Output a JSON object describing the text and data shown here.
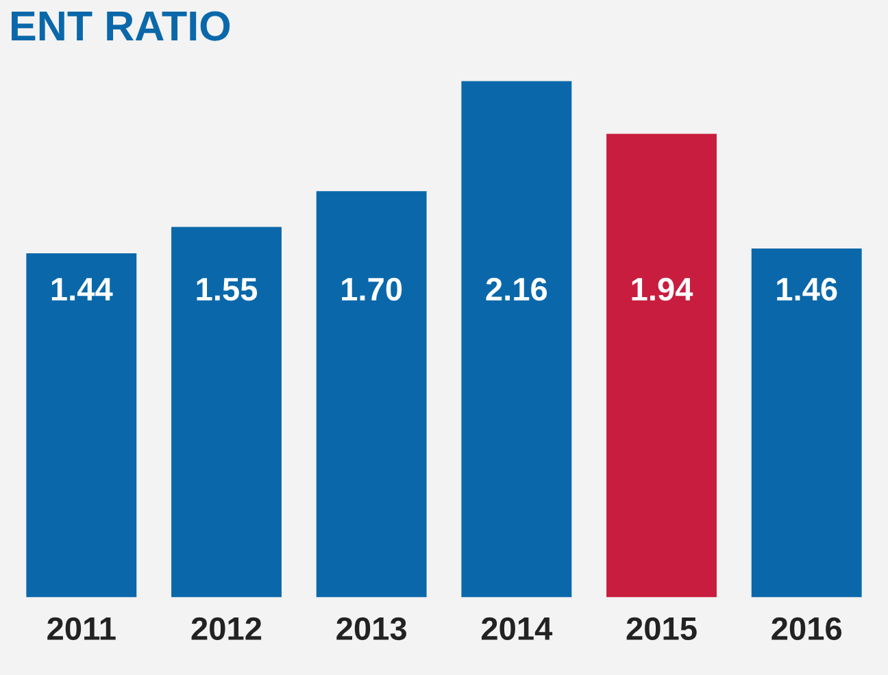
{
  "chart_data": {
    "type": "bar",
    "title": "ENT RATIO",
    "categories": [
      "2011",
      "2012",
      "2013",
      "2014",
      "2015",
      "2016"
    ],
    "values": [
      1.44,
      1.55,
      1.7,
      2.16,
      1.94,
      1.46
    ],
    "colors": [
      "#0a68aa",
      "#0a68aa",
      "#0a68aa",
      "#0a68aa",
      "#c81d3f",
      "#0a68aa"
    ],
    "value_labels": [
      "1.44",
      "1.55",
      "1.70",
      "2.16",
      "1.94",
      "1.46"
    ],
    "grid": false,
    "legend": false
  }
}
